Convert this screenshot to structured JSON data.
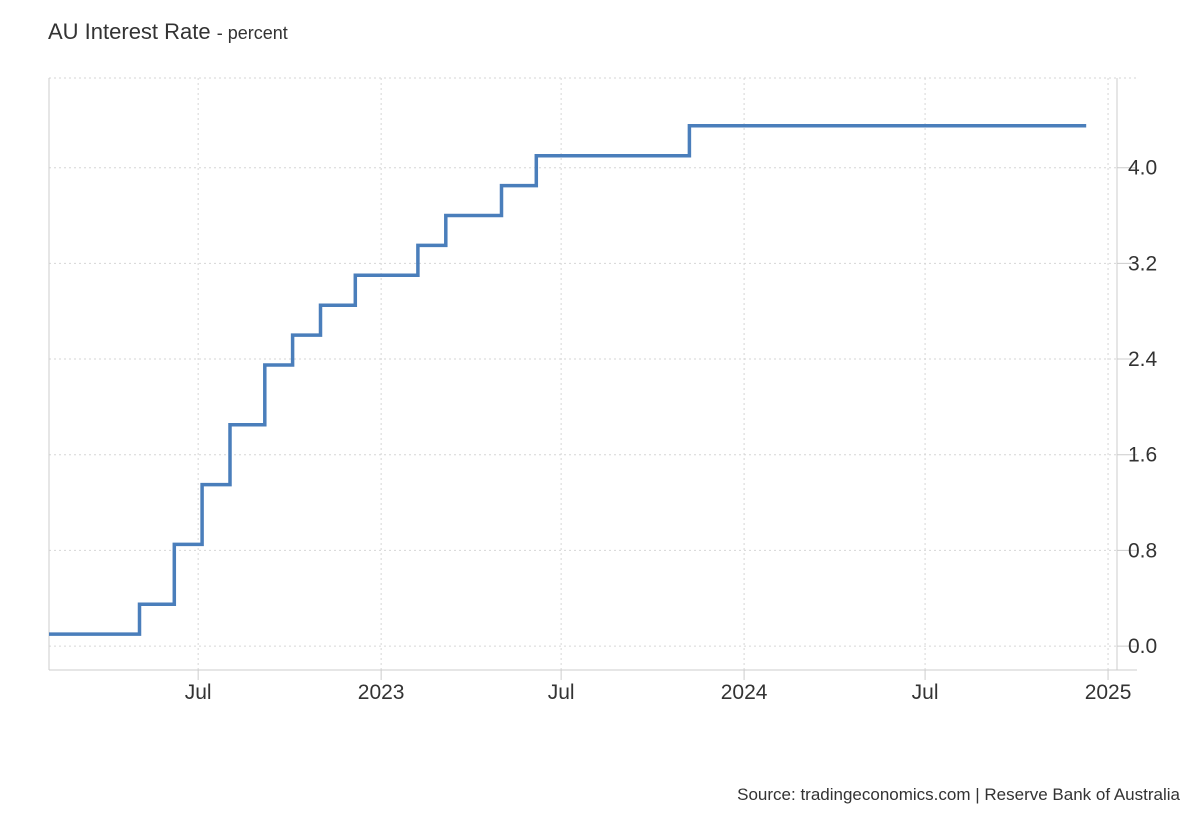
{
  "chart_data": {
    "type": "line",
    "step": true,
    "title": "AU Interest Rate",
    "subtitle": "- percent",
    "series": [
      {
        "color": "#4a7ebb",
        "points": [
          [
            "2022-02-01",
            0.1
          ],
          [
            "2022-05-03",
            0.35
          ],
          [
            "2022-06-07",
            0.85
          ],
          [
            "2022-07-05",
            1.35
          ],
          [
            "2022-08-02",
            1.85
          ],
          [
            "2022-09-06",
            2.35
          ],
          [
            "2022-10-04",
            2.6
          ],
          [
            "2022-11-01",
            2.85
          ],
          [
            "2022-12-06",
            3.1
          ],
          [
            "2023-02-07",
            3.35
          ],
          [
            "2023-03-07",
            3.6
          ],
          [
            "2023-05-02",
            3.85
          ],
          [
            "2023-06-06",
            4.1
          ],
          [
            "2023-11-07",
            4.35
          ],
          [
            "2024-12-10",
            4.35
          ]
        ]
      }
    ],
    "x_range": [
      "2022-02-01",
      "2025-01-10"
    ],
    "x_ticks": [
      {
        "date": "2022-07-01",
        "label": "Jul"
      },
      {
        "date": "2023-01-01",
        "label": "2023"
      },
      {
        "date": "2023-07-01",
        "label": "Jul"
      },
      {
        "date": "2024-01-01",
        "label": "2024"
      },
      {
        "date": "2024-07-01",
        "label": "Jul"
      },
      {
        "date": "2025-01-01",
        "label": "2025"
      }
    ],
    "ylim": [
      -0.2,
      4.75
    ],
    "y_ticks": [
      0.0,
      0.8,
      1.6,
      2.4,
      3.2,
      4.0
    ],
    "y_tick_labels": [
      "0.0",
      "0.8",
      "1.6",
      "2.4",
      "3.2",
      "4.0"
    ],
    "y_axis_side": "right",
    "grid": true,
    "source": "Source: tradingeconomics.com | Reserve Bank of Australia"
  }
}
